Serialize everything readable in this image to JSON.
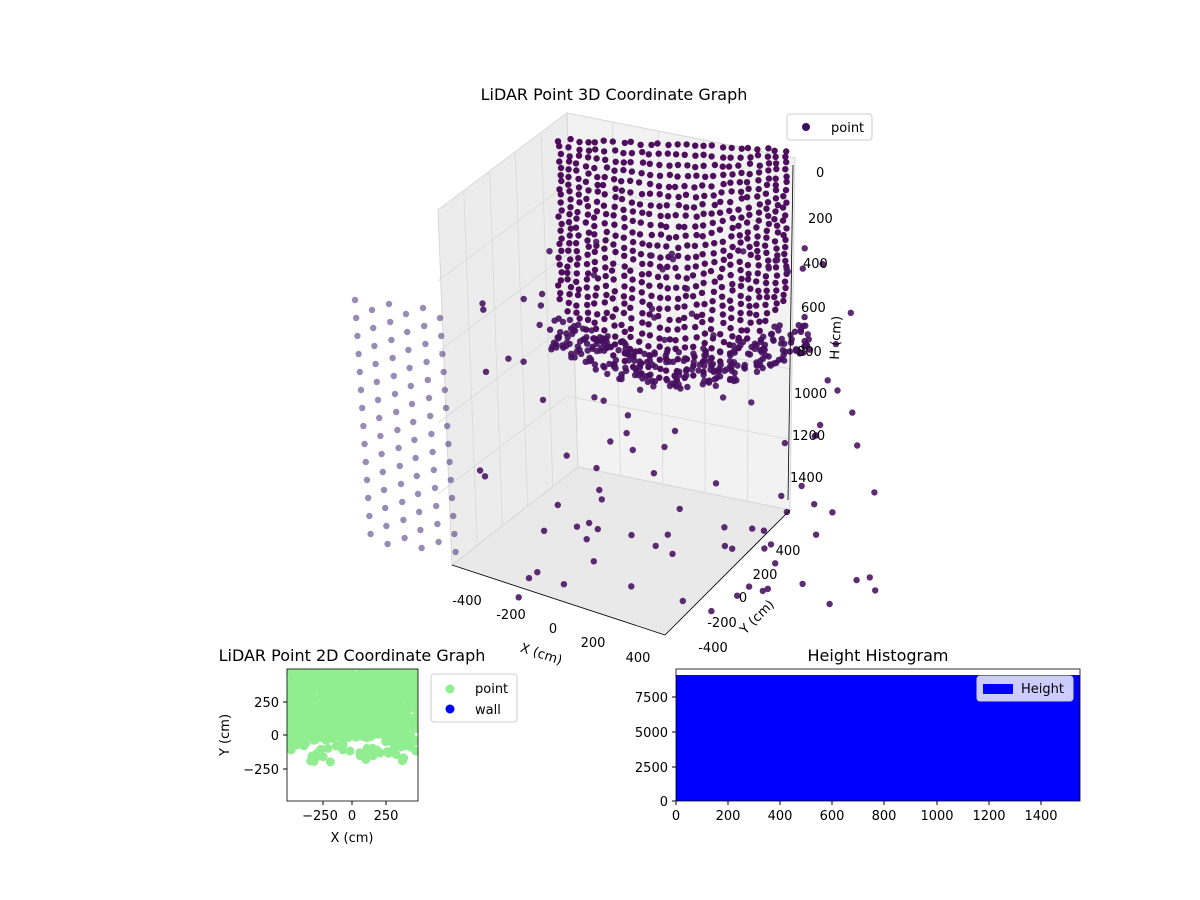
{
  "chart_data": [
    {
      "type": "scatter3d",
      "title": "LiDAR Point 3D Coordinate Graph",
      "xlabel": "X (cm)",
      "ylabel": "Y (cm)",
      "zlabel": "H (cm)",
      "xlim": [
        -500,
        500
      ],
      "ylim": [
        -500,
        500
      ],
      "zlim": [
        0,
        1500
      ],
      "z_inverted": true,
      "x_ticks": [
        "-400",
        "-200",
        "0",
        "200",
        "400"
      ],
      "y_ticks": [
        "-400",
        "-200",
        "0",
        "200",
        "400"
      ],
      "z_ticks": [
        "0",
        "200",
        "400",
        "600",
        "800",
        "1000",
        "1200",
        "1400"
      ],
      "grid": true,
      "legend": {
        "position": "top-right",
        "entries": [
          {
            "name": "point",
            "color": "#3b0f5e"
          }
        ]
      },
      "series": [
        {
          "name": "point",
          "color": "#440154"
        }
      ]
    },
    {
      "type": "scatter",
      "title": "LiDAR Point 2D Coordinate Graph",
      "xlabel": "X (cm)",
      "ylabel": "Y (cm)",
      "xlim": [
        -500,
        500
      ],
      "ylim": [
        -500,
        500
      ],
      "x_ticks": [
        "−250",
        "0",
        "250"
      ],
      "y_ticks": [
        "250",
        "0",
        "−250"
      ],
      "legend": {
        "position": "outside-right",
        "entries": [
          {
            "name": "point",
            "color": "#90ee90"
          },
          {
            "name": "wall",
            "color": "#0000ff"
          }
        ]
      },
      "series": [
        {
          "name": "point",
          "color": "#90ee90"
        },
        {
          "name": "wall",
          "color": "#0000ff",
          "values": []
        }
      ]
    },
    {
      "type": "bar",
      "title": "Height Histogram",
      "xlim": [
        0,
        1550
      ],
      "ylim": [
        0,
        9500
      ],
      "x_ticks": [
        "0",
        "200",
        "400",
        "600",
        "800",
        "1000",
        "1200",
        "1400"
      ],
      "y_ticks": [
        "0",
        "2500",
        "5000",
        "7500"
      ],
      "bar_top": 9200,
      "legend": {
        "position": "top-right",
        "entries": [
          {
            "name": "Height",
            "color": "#0000ff"
          }
        ]
      },
      "series": [
        {
          "name": "Height",
          "color": "#0000ff"
        }
      ]
    }
  ]
}
